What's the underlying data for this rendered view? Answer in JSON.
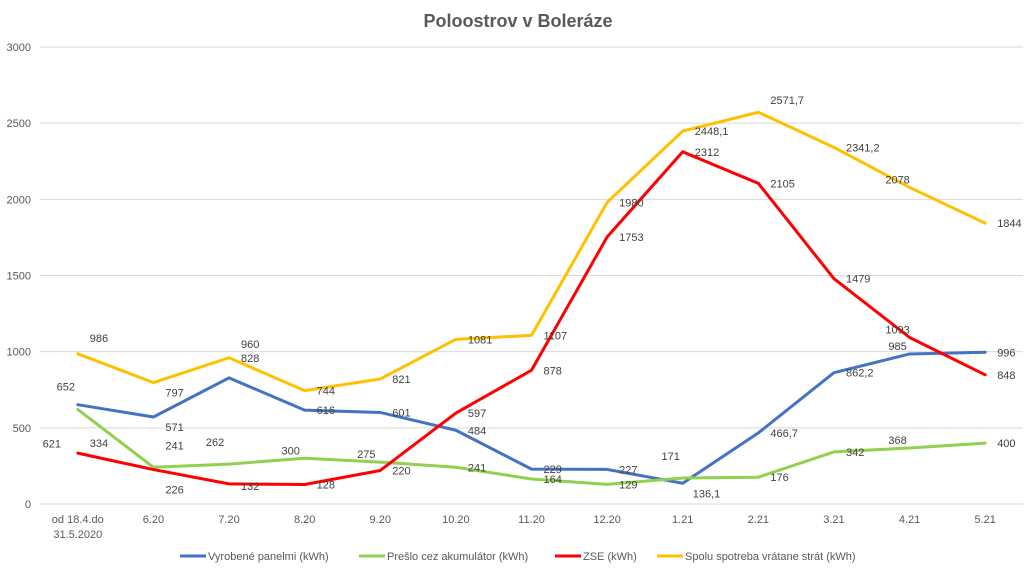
{
  "chart_data": {
    "type": "line",
    "title": "Poloostrov v Boleráze",
    "xlabel": "",
    "ylabel": "",
    "ylim": [
      0,
      3000
    ],
    "yticks": [
      0,
      500,
      1000,
      1500,
      2000,
      2500,
      3000
    ],
    "grid": true,
    "legend_position": "bottom",
    "categories": [
      "od 18.4.do 31.5.2020",
      "6.20",
      "7.20",
      "8.20",
      "9.20",
      "10.20",
      "11.20",
      "12.20",
      "1.21",
      "2.21",
      "3.21",
      "4.21",
      "5.21"
    ],
    "series": [
      {
        "name": "Vyrobené panelmi (kWh)",
        "color": "#4472C4",
        "values": [
          652,
          571,
          828,
          616,
          601,
          484,
          229,
          227,
          136.1,
          466.7,
          862.2,
          985,
          996
        ],
        "labels": [
          "652",
          "571",
          "828",
          "616",
          "601",
          "484",
          "229",
          "227",
          "136,1",
          "466,7",
          "862,2",
          "985",
          "996"
        ]
      },
      {
        "name": "Prešlo cez akumulátor (kWh)",
        "color": "#92D050",
        "values": [
          621,
          241,
          262,
          300,
          275,
          241,
          164,
          129,
          171,
          176,
          342,
          368,
          400
        ],
        "labels": [
          "621",
          "241",
          "262",
          "300",
          "275",
          "241",
          "164",
          "129",
          "171",
          "176",
          "342",
          "368",
          "400"
        ]
      },
      {
        "name": "ZSE (kWh)",
        "color": "#FF0000",
        "values": [
          334,
          226,
          132,
          128,
          220,
          597,
          878,
          1753,
          2312,
          2105,
          1479,
          1093,
          848
        ],
        "labels": [
          "334",
          "226",
          "132",
          "128",
          "220",
          "597",
          "878",
          "1753",
          "2312",
          "2105",
          "1479",
          "1093",
          "848"
        ]
      },
      {
        "name": "Spolu spotreba vrátane strát (kWh)",
        "color": "#FFC000",
        "values": [
          986,
          797,
          960,
          744,
          821,
          1081,
          1107,
          1980,
          2448.1,
          2571.7,
          2341.2,
          2078,
          1844
        ],
        "labels": [
          "986",
          "797",
          "960",
          "744",
          "821",
          "1081",
          "1107",
          "1980",
          "2448,1",
          "2571,7",
          "2341,2",
          "2078",
          "1844"
        ]
      }
    ]
  }
}
